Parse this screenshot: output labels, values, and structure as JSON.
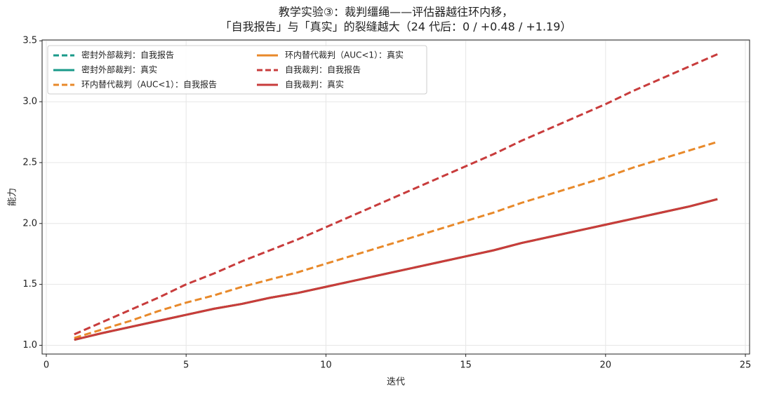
{
  "chart_data": {
    "type": "line",
    "title": [
      "教学实验③：裁判缰绳——评估器越往环内移，",
      "「自我报告」与「真实」的裂缝越大（24 代后：0 / +0.48 / +1.19）"
    ],
    "x_label": "迭代",
    "y_label": "能力",
    "x": [
      1,
      2,
      3,
      4,
      5,
      6,
      7,
      8,
      9,
      10,
      11,
      12,
      13,
      14,
      15,
      16,
      17,
      18,
      19,
      20,
      21,
      22,
      23,
      24
    ],
    "series": [
      {
        "name": "密封外部裁判：自我报告",
        "color": "#1a9a8a",
        "linestyle": "dashed",
        "values": [
          1.045,
          1.1,
          1.15,
          1.2,
          1.25,
          1.3,
          1.34,
          1.39,
          1.43,
          1.48,
          1.53,
          1.58,
          1.63,
          1.68,
          1.73,
          1.78,
          1.84,
          1.89,
          1.94,
          1.99,
          2.04,
          2.09,
          2.14,
          2.2
        ]
      },
      {
        "name": "密封外部裁判：真实",
        "color": "#1a9a8a",
        "linestyle": "solid",
        "values": [
          1.045,
          1.1,
          1.15,
          1.2,
          1.25,
          1.3,
          1.34,
          1.39,
          1.43,
          1.48,
          1.53,
          1.58,
          1.63,
          1.68,
          1.73,
          1.78,
          1.84,
          1.89,
          1.94,
          1.99,
          2.04,
          2.09,
          2.14,
          2.2
        ]
      },
      {
        "name": "环内替代裁判（AUC<1）：自我报告",
        "color": "#e8892a",
        "linestyle": "dashed",
        "values": [
          1.06,
          1.13,
          1.2,
          1.28,
          1.35,
          1.41,
          1.48,
          1.54,
          1.6,
          1.67,
          1.74,
          1.81,
          1.88,
          1.95,
          2.02,
          2.09,
          2.17,
          2.24,
          2.31,
          2.38,
          2.46,
          2.53,
          2.6,
          2.67
        ]
      },
      {
        "name": "环内替代裁判（AUC<1）：真实",
        "color": "#e8892a",
        "linestyle": "solid",
        "values": [
          1.045,
          1.1,
          1.15,
          1.2,
          1.25,
          1.3,
          1.34,
          1.39,
          1.43,
          1.48,
          1.53,
          1.58,
          1.63,
          1.68,
          1.73,
          1.78,
          1.84,
          1.89,
          1.94,
          1.99,
          2.04,
          2.09,
          2.14,
          2.2
        ]
      },
      {
        "name": "自我裁判：自我报告",
        "color": "#c83c3c",
        "linestyle": "dashed",
        "values": [
          1.09,
          1.19,
          1.29,
          1.39,
          1.5,
          1.59,
          1.69,
          1.78,
          1.87,
          1.97,
          2.07,
          2.17,
          2.27,
          2.37,
          2.47,
          2.57,
          2.68,
          2.78,
          2.88,
          2.98,
          3.09,
          3.19,
          3.29,
          3.39
        ]
      },
      {
        "name": "自我裁判：真实",
        "color": "#c83c3c",
        "linestyle": "solid",
        "values": [
          1.045,
          1.1,
          1.15,
          1.2,
          1.25,
          1.3,
          1.34,
          1.39,
          1.43,
          1.48,
          1.53,
          1.58,
          1.63,
          1.68,
          1.73,
          1.78,
          1.84,
          1.89,
          1.94,
          1.99,
          2.04,
          2.09,
          2.14,
          2.2
        ]
      }
    ],
    "xlim": [
      -0.15,
      25.15
    ],
    "xticks": [
      0,
      5,
      10,
      15,
      20,
      25
    ],
    "ylim": [
      0.928,
      3.507
    ],
    "yticks": [
      {
        "value": 1,
        "label": "1.0"
      },
      1.5,
      {
        "value": 2,
        "label": "2.0"
      },
      2.5,
      {
        "value": 3,
        "label": "3.0"
      },
      3.5
    ],
    "grid": true,
    "legend": "upper-left"
  }
}
